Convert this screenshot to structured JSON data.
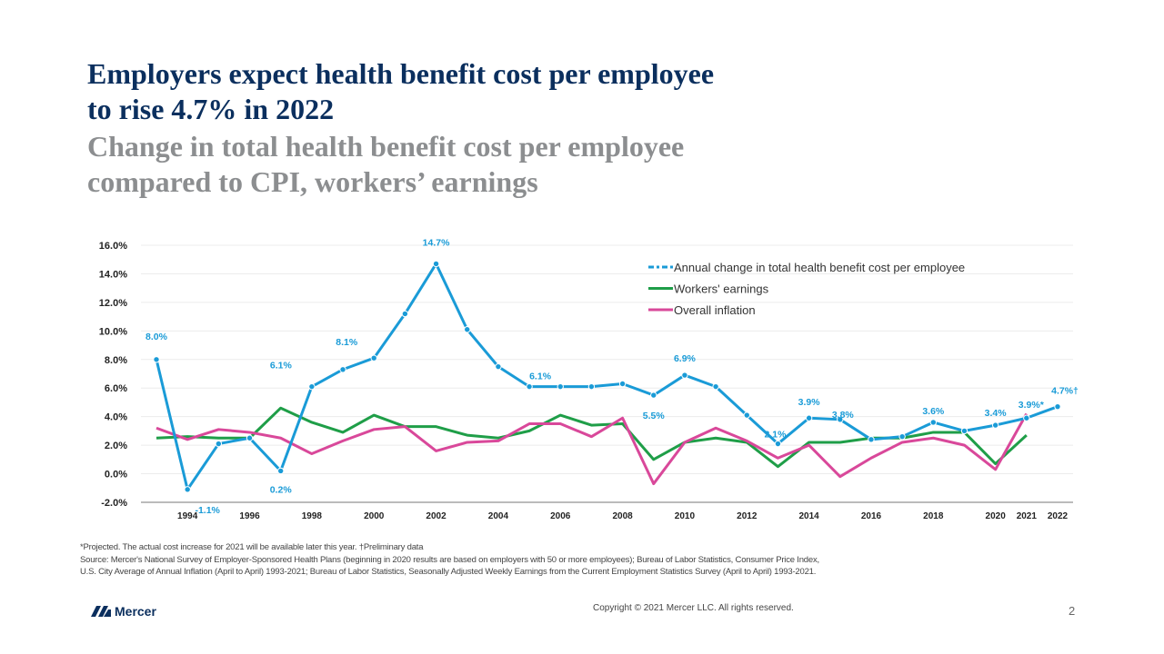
{
  "title": "Employers expect health benefit cost per employee to rise 4.7% in 2022",
  "title_lines": [
    "Employers expect health benefit cost per employee",
    "to rise 4.7% in 2022"
  ],
  "subtitle_lines": [
    "Change in total health benefit cost per employee",
    "compared to CPI, workers’ earnings"
  ],
  "chart_data": {
    "type": "line",
    "x": [
      1993,
      1994,
      1995,
      1996,
      1997,
      1998,
      1999,
      2000,
      2001,
      2002,
      2003,
      2004,
      2005,
      2006,
      2007,
      2008,
      2009,
      2010,
      2011,
      2012,
      2013,
      2014,
      2015,
      2016,
      2017,
      2018,
      2019,
      2020,
      2021,
      2022
    ],
    "x_tick_labels": [
      "1994",
      "1996",
      "1998",
      "2000",
      "2002",
      "2004",
      "2006",
      "2008",
      "2010",
      "2012",
      "2014",
      "2016",
      "2018",
      "2020",
      "2021",
      "2022"
    ],
    "y_tick_labels": [
      "16.0%",
      "14.0%",
      "12.0%",
      "10.0%",
      "8.0%",
      "6.0%",
      "4.0%",
      "2.0%",
      "0.0%",
      "-2.0%"
    ],
    "ylim": [
      -2,
      16
    ],
    "grid": true,
    "legend_position": "top-right",
    "series": [
      {
        "name": "Annual change in total health benefit cost per employee",
        "color": "#1a9bd7",
        "markers": true,
        "values": [
          8.0,
          -1.1,
          2.1,
          2.5,
          0.2,
          6.1,
          7.3,
          8.1,
          11.2,
          14.7,
          10.1,
          7.5,
          6.1,
          6.1,
          6.1,
          6.3,
          5.5,
          6.9,
          6.1,
          4.1,
          2.1,
          3.9,
          3.8,
          2.4,
          2.6,
          3.6,
          3.0,
          3.4,
          3.9,
          4.7
        ]
      },
      {
        "name": "Workers' earnings",
        "color": "#1f9e48",
        "markers": false,
        "values": [
          2.5,
          2.6,
          2.5,
          2.5,
          4.6,
          3.6,
          2.9,
          4.1,
          3.3,
          3.3,
          2.7,
          2.5,
          3.0,
          4.1,
          3.4,
          3.5,
          1.0,
          2.2,
          2.5,
          2.2,
          0.5,
          2.2,
          2.2,
          2.5,
          2.5,
          2.9,
          2.9,
          0.7,
          2.7,
          null
        ]
      },
      {
        "name": "Overall inflation",
        "color": "#d9489a",
        "markers": false,
        "values": [
          3.2,
          2.4,
          3.1,
          2.9,
          2.5,
          1.4,
          2.3,
          3.1,
          3.3,
          1.6,
          2.2,
          2.3,
          3.5,
          3.5,
          2.6,
          3.9,
          -0.7,
          2.2,
          3.2,
          2.3,
          1.1,
          2.0,
          -0.2,
          1.1,
          2.2,
          2.5,
          2.0,
          0.3,
          4.2,
          null
        ]
      }
    ],
    "data_labels": [
      {
        "year": 1993,
        "text": "8.0%"
      },
      {
        "year": 1994,
        "text": "-1.1%"
      },
      {
        "year": 1998,
        "text": "6.1%"
      },
      {
        "year": 1997,
        "text": "0.2%"
      },
      {
        "year": 2000,
        "text": "8.1%"
      },
      {
        "year": 2002,
        "text": "14.7%"
      },
      {
        "year": 2005,
        "text": "6.1%"
      },
      {
        "year": 2009,
        "text": "5.5%"
      },
      {
        "year": 2010,
        "text": "6.9%"
      },
      {
        "year": 2013,
        "text": "2.1%"
      },
      {
        "year": 2014,
        "text": "3.9%"
      },
      {
        "year": 2015,
        "text": "3.8%"
      },
      {
        "year": 2018,
        "text": "3.6%"
      },
      {
        "year": 2020,
        "text": "3.4%"
      },
      {
        "year": 2021,
        "text": "3.9%*"
      },
      {
        "year": 2022,
        "text": "4.7%†"
      }
    ]
  },
  "notes": {
    "line1": "*Projected. The actual cost increase for 2021 will be available later this year.  †Preliminary data",
    "line2": "Source: Mercer's National Survey of Employer-Sponsored Health Plans  (beginning in 2020 results are based on employers with 50 or more employees); Bureau of Labor Statistics, Consumer Price Index,",
    "line3": "U.S. City Average of Annual Inflation (April to April) 1993-2021; Bureau of Labor Statistics, Seasonally Adjusted Weekly Earnings from the Current Employment  Statistics Survey (April to April) 1993-2021."
  },
  "footer": {
    "logo_text": "Mercer",
    "copyright": "Copyright © 2021 Mercer LLC. All rights reserved.",
    "page_number": "2"
  }
}
